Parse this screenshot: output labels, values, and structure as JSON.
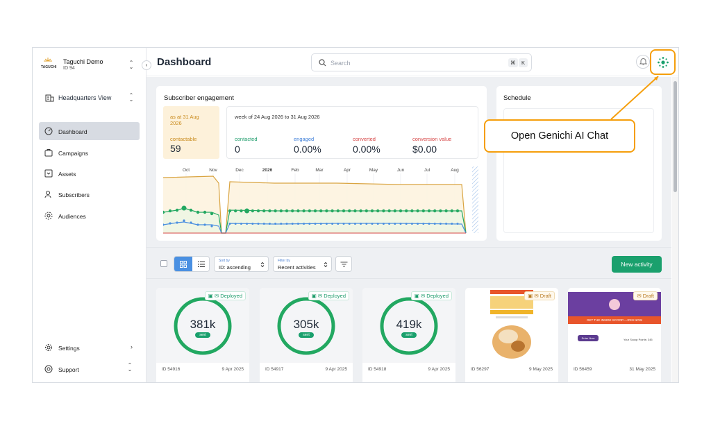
{
  "org": {
    "name": "Taguchi Demo",
    "id": "ID 94",
    "logo_text": "TAGUCHI"
  },
  "sidebar": {
    "view": "Headquarters View",
    "items": [
      {
        "label": "Dashboard",
        "icon": "dashboard-icon",
        "active": true
      },
      {
        "label": "Campaigns",
        "icon": "campaigns-icon"
      },
      {
        "label": "Assets",
        "icon": "assets-icon"
      },
      {
        "label": "Subscribers",
        "icon": "subscribers-icon"
      },
      {
        "label": "Audiences",
        "icon": "audiences-icon"
      }
    ],
    "bottom": [
      {
        "label": "Settings",
        "icon": "gear-icon"
      },
      {
        "label": "Support",
        "icon": "support-icon"
      }
    ]
  },
  "header": {
    "title": "Dashboard",
    "search_placeholder": "Search",
    "shortcut_1": "⌘",
    "shortcut_2": "K"
  },
  "engagement": {
    "title": "Subscriber engagement",
    "as_at": "as at 31 Aug 2026",
    "contactable_label": "contactable",
    "contactable_value": "59",
    "week": "week of 24 Aug 2026 to 31 Aug 2026",
    "metrics": [
      {
        "label": "contacted",
        "value": "0",
        "color": "#1a9b69"
      },
      {
        "label": "engaged",
        "value": "0.00%",
        "color": "#3b7dd8"
      },
      {
        "label": "converted",
        "value": "0.00%",
        "color": "#d64545"
      },
      {
        "label": "conversion value",
        "value": "$0.00",
        "color": "#d64545"
      }
    ]
  },
  "chart_data": {
    "type": "line",
    "x": [
      "Oct",
      "Nov",
      "Dec",
      "2026",
      "Feb",
      "Mar",
      "Apr",
      "May",
      "Jun",
      "Jul",
      "Aug"
    ],
    "series_colors": {
      "contactable": "#d9a441",
      "contacted": "#22a861",
      "engaged": "#4a8fe0",
      "converted": "#d64545"
    }
  },
  "schedule": {
    "title": "Schedule"
  },
  "toolbar": {
    "sort_caption": "Sort by",
    "sort_value": "ID: ascending",
    "filter_caption": "Filter by",
    "filter_value": "Recent activities",
    "new_button": "New activity"
  },
  "activities": [
    {
      "status": "Deployed",
      "count": "381k",
      "sent": "sent",
      "id": "ID 54916",
      "date": "9 Apr 2025"
    },
    {
      "status": "Deployed",
      "count": "305k",
      "sent": "sent",
      "id": "ID 54917",
      "date": "9 Apr 2025"
    },
    {
      "status": "Deployed",
      "count": "419k",
      "sent": "sent",
      "id": "ID 54918",
      "date": "9 Apr 2025"
    },
    {
      "status": "Draft",
      "id": "ID 56297",
      "date": "9 May 2025"
    },
    {
      "status": "Draft",
      "id": "ID 56459",
      "date": "31 May 2025",
      "banner": "GET THE INSIDE SCOOP—JOIN NOW",
      "cta": "Enter Now",
      "points": "Your Scoop Points: 345"
    }
  ],
  "callout": {
    "text": "Open Genichi AI Chat"
  }
}
